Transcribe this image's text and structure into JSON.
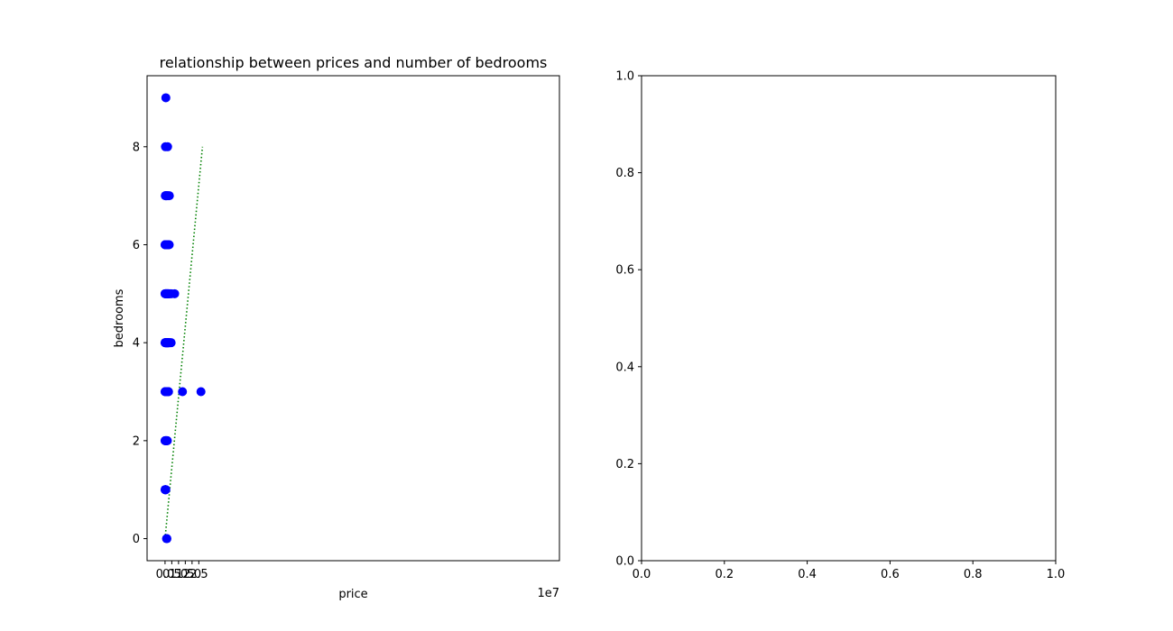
{
  "chart_data": [
    {
      "type": "scatter",
      "title": "relationship between prices and number of bedrooms",
      "xlabel": "price",
      "ylabel": "bedrooms",
      "x_offset_label": "1e7",
      "xlim": [
        -1.33,
        29.2
      ],
      "ylim": [
        -0.45,
        9.45
      ],
      "x_unit_note": "x values in units of 1e7",
      "xticks": [
        0.0,
        0.5,
        1.0,
        1.5,
        2.0,
        2.5
      ],
      "xtick_labels": [
        "0.0",
        "0.5",
        "1.0",
        "1.5",
        "2.0",
        "2.5"
      ],
      "yticks": [
        0,
        2,
        4,
        6,
        8
      ],
      "ytick_labels": [
        "0",
        "2",
        "4",
        "6",
        "8"
      ],
      "grid": false,
      "series": [
        {
          "kind": "points",
          "color": "#0000ff",
          "points": [
            [
              0.06,
              9
            ],
            [
              0.03,
              8
            ],
            [
              0.19,
              8
            ],
            [
              0.02,
              7
            ],
            [
              0.04,
              7
            ],
            [
              0.06,
              7
            ],
            [
              0.08,
              7
            ],
            [
              0.1,
              7
            ],
            [
              0.12,
              7
            ],
            [
              0.18,
              7
            ],
            [
              0.22,
              7
            ],
            [
              0.32,
              7
            ],
            [
              0.0,
              6
            ],
            [
              0.02,
              6
            ],
            [
              0.03,
              6
            ],
            [
              0.04,
              6
            ],
            [
              0.05,
              6
            ],
            [
              0.06,
              6
            ],
            [
              0.07,
              6
            ],
            [
              0.08,
              6
            ],
            [
              0.09,
              6
            ],
            [
              0.1,
              6
            ],
            [
              0.11,
              6
            ],
            [
              0.12,
              6
            ],
            [
              0.13,
              6
            ],
            [
              0.14,
              6
            ],
            [
              0.15,
              6
            ],
            [
              0.16,
              6
            ],
            [
              0.17,
              6
            ],
            [
              0.18,
              6
            ],
            [
              0.2,
              6
            ],
            [
              0.22,
              6
            ],
            [
              0.24,
              6
            ],
            [
              0.31,
              6
            ],
            [
              0.0,
              5
            ],
            [
              0.02,
              5
            ],
            [
              0.04,
              5
            ],
            [
              0.06,
              5
            ],
            [
              0.08,
              5
            ],
            [
              0.1,
              5
            ],
            [
              0.12,
              5
            ],
            [
              0.14,
              5
            ],
            [
              0.16,
              5
            ],
            [
              0.18,
              5
            ],
            [
              0.2,
              5
            ],
            [
              0.22,
              5
            ],
            [
              0.24,
              5
            ],
            [
              0.27,
              5
            ],
            [
              0.29,
              5
            ],
            [
              0.37,
              5
            ],
            [
              0.47,
              5
            ],
            [
              0.71,
              5
            ],
            [
              0.0,
              4
            ],
            [
              0.02,
              4
            ],
            [
              0.04,
              4
            ],
            [
              0.06,
              4
            ],
            [
              0.08,
              4
            ],
            [
              0.1,
              4
            ],
            [
              0.12,
              4
            ],
            [
              0.14,
              4
            ],
            [
              0.16,
              4
            ],
            [
              0.18,
              4
            ],
            [
              0.2,
              4
            ],
            [
              0.22,
              4
            ],
            [
              0.24,
              4
            ],
            [
              0.26,
              4
            ],
            [
              0.29,
              4
            ],
            [
              0.36,
              4
            ],
            [
              0.45,
              4
            ],
            [
              0.0,
              3
            ],
            [
              0.02,
              3
            ],
            [
              0.04,
              3
            ],
            [
              0.06,
              3
            ],
            [
              0.08,
              3
            ],
            [
              0.1,
              3
            ],
            [
              0.12,
              3
            ],
            [
              0.14,
              3
            ],
            [
              0.16,
              3
            ],
            [
              0.18,
              3
            ],
            [
              0.2,
              3
            ],
            [
              0.22,
              3
            ],
            [
              0.24,
              3
            ],
            [
              0.26,
              3
            ],
            [
              1.29,
              3
            ],
            [
              2.66,
              3
            ],
            [
              0.0,
              2
            ],
            [
              0.02,
              2
            ],
            [
              0.04,
              2
            ],
            [
              0.06,
              2
            ],
            [
              0.08,
              2
            ],
            [
              0.1,
              2
            ],
            [
              0.12,
              2
            ],
            [
              0.15,
              2
            ],
            [
              0.17,
              2
            ],
            [
              0.0,
              1
            ],
            [
              0.02,
              1
            ],
            [
              0.04,
              1
            ],
            [
              0.06,
              1
            ],
            [
              0.11,
              0
            ],
            [
              0.14,
              0
            ]
          ]
        },
        {
          "kind": "line",
          "style": "dotted",
          "color": "#008000",
          "points": [
            [
              0.0,
              0
            ],
            [
              2.77,
              8
            ]
          ]
        }
      ]
    },
    {
      "type": "scatter",
      "title": "",
      "xlabel": "",
      "ylabel": "",
      "xlim": [
        0,
        1
      ],
      "ylim": [
        0,
        1
      ],
      "xticks": [
        0.0,
        0.2,
        0.4,
        0.6,
        0.8,
        1.0
      ],
      "xtick_labels": [
        "0.0",
        "0.2",
        "0.4",
        "0.6",
        "0.8",
        "1.0"
      ],
      "yticks": [
        0.0,
        0.2,
        0.4,
        0.6,
        0.8,
        1.0
      ],
      "ytick_labels": [
        "0.0",
        "0.2",
        "0.4",
        "0.6",
        "0.8",
        "1.0"
      ],
      "grid": false,
      "series": []
    }
  ]
}
